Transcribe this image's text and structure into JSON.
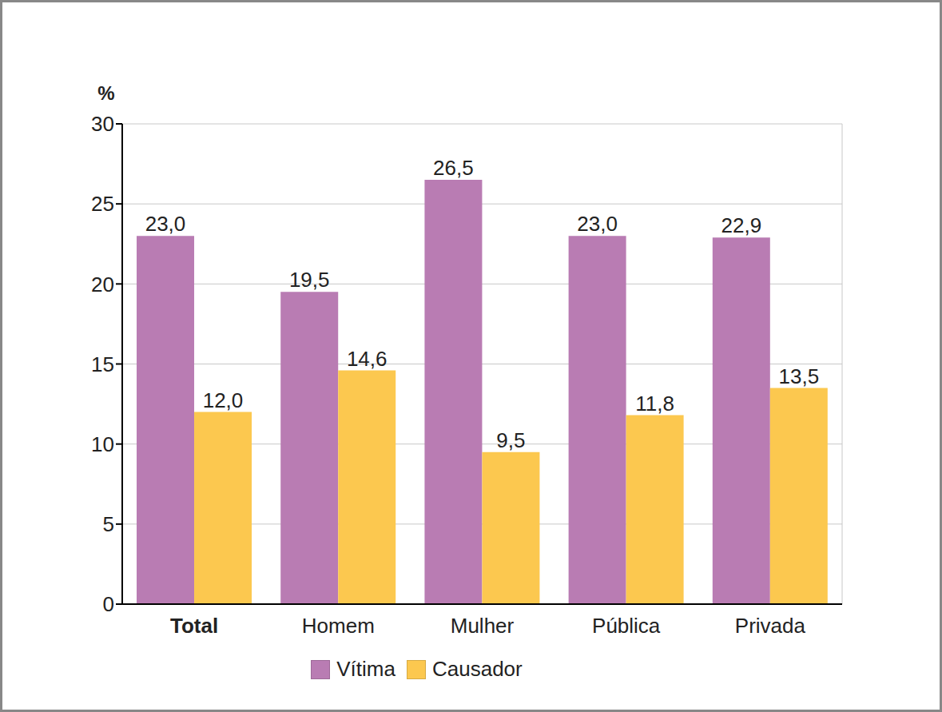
{
  "chart_data": {
    "type": "bar",
    "ylabel": "%",
    "categories": [
      "Total",
      "Homem",
      "Mulher",
      "Pública",
      "Privada"
    ],
    "series": [
      {
        "name": "Vítima",
        "color": "#b97cb3",
        "values": [
          23.0,
          19.5,
          26.5,
          23.0,
          22.9
        ],
        "value_labels": [
          "23,0",
          "19,5",
          "26,5",
          "23,0",
          "22,9"
        ]
      },
      {
        "name": "Causador",
        "color": "#fcc84f",
        "values": [
          12.0,
          14.6,
          9.5,
          11.8,
          13.5
        ],
        "value_labels": [
          "12,0",
          "14,6",
          "9,5",
          "11,8",
          "13,5"
        ]
      }
    ],
    "ylim": [
      0,
      30
    ],
    "yticks": [
      0,
      5,
      10,
      15,
      20,
      25,
      30
    ],
    "grid": true,
    "legend": "bottom",
    "data_labels": true
  }
}
